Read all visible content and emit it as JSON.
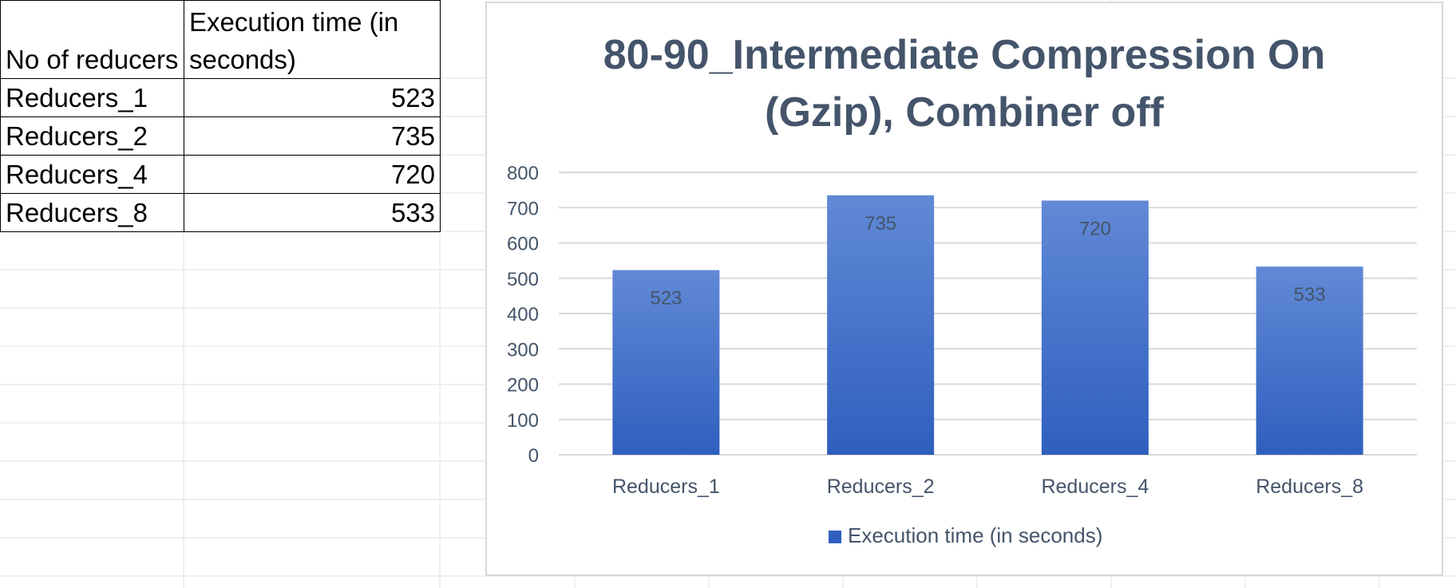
{
  "table": {
    "headers": [
      "No of reducers",
      "Execution time (in seconds)"
    ],
    "rows": [
      {
        "label": "Reducers_1",
        "value": "523"
      },
      {
        "label": "Reducers_2",
        "value": "735"
      },
      {
        "label": "Reducers_4",
        "value": "720"
      },
      {
        "label": "Reducers_8",
        "value": "533"
      }
    ]
  },
  "chart_data": {
    "type": "bar",
    "title_lines": [
      "80-90_Intermediate Compression On",
      "(Gzip), Combiner off"
    ],
    "categories": [
      "Reducers_1",
      "Reducers_2",
      "Reducers_4",
      "Reducers_8"
    ],
    "series": [
      {
        "name": "Execution time (in seconds)",
        "values": [
          523,
          735,
          720,
          533
        ]
      }
    ],
    "ylim": [
      0,
      800
    ],
    "yticks": [
      0,
      100,
      200,
      300,
      400,
      500,
      600,
      700,
      800
    ],
    "grid": true,
    "legend_position": "bottom",
    "colors": {
      "bar_top": "#6189d6",
      "bar_bottom": "#2f5fbe",
      "title": "#44546a",
      "axis_text": "#44546a",
      "gridline": "#d9d9d9"
    }
  }
}
